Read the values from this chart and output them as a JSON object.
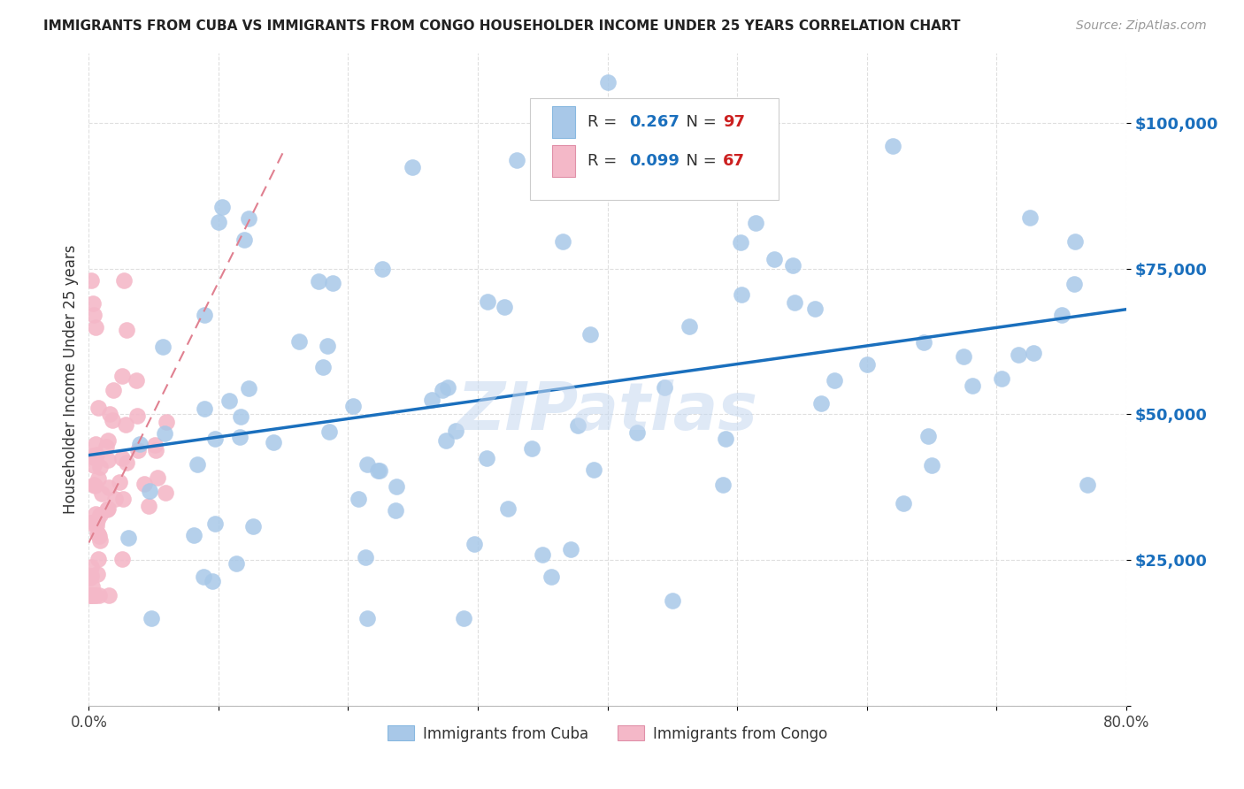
{
  "title": "IMMIGRANTS FROM CUBA VS IMMIGRANTS FROM CONGO HOUSEHOLDER INCOME UNDER 25 YEARS CORRELATION CHART",
  "source": "Source: ZipAtlas.com",
  "ylabel": "Householder Income Under 25 years",
  "xmin": 0.0,
  "xmax": 0.8,
  "ymin": 0,
  "ymax": 110000,
  "yticks": [
    0,
    25000,
    50000,
    75000,
    100000
  ],
  "ytick_labels": [
    "",
    "$25,000",
    "$50,000",
    "$75,000",
    "$100,000"
  ],
  "xticks": [
    0.0,
    0.1,
    0.2,
    0.3,
    0.4,
    0.5,
    0.6,
    0.7,
    0.8
  ],
  "xtick_labels": [
    "0.0%",
    "",
    "",
    "",
    "",
    "",
    "",
    "",
    "80.0%"
  ],
  "cuba_R": 0.267,
  "cuba_N": 97,
  "congo_R": 0.099,
  "congo_N": 67,
  "cuba_color": "#a8c8e8",
  "congo_color": "#f4b8c8",
  "trendline_color": "#1a6fbd",
  "congo_trendline_color": "#e08090",
  "background_color": "#ffffff",
  "grid_color": "#d8d8d8",
  "watermark": "ZIPatlas",
  "cuba_trendline_x0": 0.0,
  "cuba_trendline_y0": 43000,
  "cuba_trendline_x1": 0.8,
  "cuba_trendline_y1": 68000,
  "congo_trendline_x0": 0.0,
  "congo_trendline_y0": 28000,
  "congo_trendline_x1": 0.15,
  "congo_trendline_y1": 95000
}
